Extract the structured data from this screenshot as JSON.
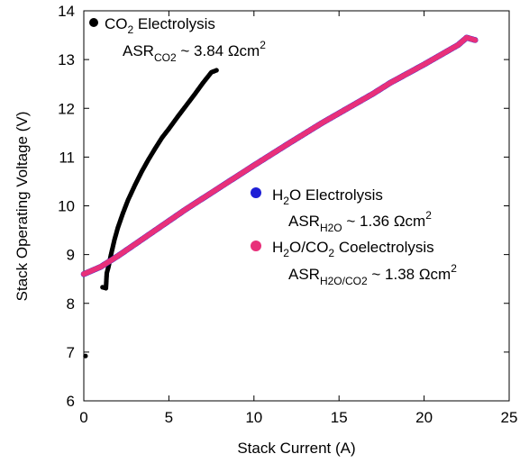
{
  "chart_data": {
    "type": "scatter",
    "xlabel": "Stack Current (A)",
    "ylabel": "Stack Operating Voltage (V)",
    "xlim": [
      0,
      25
    ],
    "ylim": [
      6,
      14
    ],
    "x_ticks": [
      "0",
      "5",
      "10",
      "15",
      "20",
      "25"
    ],
    "y_ticks": [
      "6",
      "7",
      "8",
      "9",
      "10",
      "11",
      "12",
      "13",
      "14"
    ],
    "grid": false,
    "legend_position": "inside-left",
    "series": [
      {
        "name": "CO2 Electrolysis",
        "color": "#000000",
        "asr_label": "~ 3.84 Ωcm",
        "points": [
          [
            0.1,
            6.92
          ],
          [
            1.1,
            8.33
          ],
          [
            1.3,
            8.31
          ],
          [
            1.35,
            8.62
          ],
          [
            1.45,
            8.75
          ],
          [
            1.6,
            9.0
          ],
          [
            1.8,
            9.3
          ],
          [
            2.0,
            9.55
          ],
          [
            2.3,
            9.85
          ],
          [
            2.6,
            10.12
          ],
          [
            3.0,
            10.42
          ],
          [
            3.4,
            10.7
          ],
          [
            3.8,
            10.95
          ],
          [
            4.2,
            11.18
          ],
          [
            4.6,
            11.4
          ],
          [
            5.0,
            11.58
          ],
          [
            5.5,
            11.82
          ],
          [
            6.0,
            12.05
          ],
          [
            6.5,
            12.28
          ],
          [
            7.0,
            12.52
          ],
          [
            7.5,
            12.74
          ],
          [
            7.8,
            12.78
          ]
        ]
      },
      {
        "name": "H2O Electrolysis",
        "color": "#1f1fd6",
        "asr_label": "~ 1.36 Ωcm",
        "points": [
          [
            0.0,
            8.6
          ],
          [
            1.0,
            8.75
          ],
          [
            2.0,
            8.97
          ],
          [
            4.0,
            9.45
          ],
          [
            6.0,
            9.93
          ],
          [
            8.0,
            10.38
          ],
          [
            10.0,
            10.83
          ],
          [
            12.0,
            11.27
          ],
          [
            14.0,
            11.7
          ],
          [
            16.0,
            12.1
          ],
          [
            17.0,
            12.3
          ],
          [
            18.0,
            12.52
          ],
          [
            20.0,
            12.9
          ],
          [
            22.0,
            13.3
          ],
          [
            22.5,
            13.45
          ],
          [
            23.0,
            13.4
          ]
        ]
      },
      {
        "name": "H2O/CO2 Coelectrolysis",
        "color": "#e8307a",
        "asr_label": "~ 1.38 Ωcm",
        "points": [
          [
            0.0,
            8.6
          ],
          [
            1.0,
            8.75
          ],
          [
            2.0,
            8.97
          ],
          [
            4.0,
            9.45
          ],
          [
            6.0,
            9.93
          ],
          [
            8.0,
            10.38
          ],
          [
            10.0,
            10.83
          ],
          [
            12.0,
            11.27
          ],
          [
            14.0,
            11.7
          ],
          [
            16.0,
            12.1
          ],
          [
            17.0,
            12.3
          ],
          [
            18.0,
            12.52
          ],
          [
            20.0,
            12.9
          ],
          [
            22.0,
            13.3
          ],
          [
            22.5,
            13.45
          ],
          [
            23.0,
            13.4
          ]
        ]
      }
    ],
    "legend": {
      "co2": {
        "pre": "CO",
        "sub": "2",
        "post": " Electrolysis",
        "asr": "ASR",
        "asr_sub": "CO2",
        "asr_val": " ~ 3.84 Ωcm",
        "sup": "2"
      },
      "h2o": {
        "pre": "H",
        "sub": "2",
        "post": "O Electrolysis",
        "asr": "ASR",
        "asr_sub": "H2O",
        "asr_val": " ~ 1.36 Ωcm",
        "sup": "2"
      },
      "coel": {
        "pre": "H",
        "sub": "2",
        "mid": "O/CO",
        "sub2": "2",
        "post": " Coelectrolysis",
        "asr": "ASR",
        "asr_sub": "H2O/CO2",
        "asr_val": " ~ 1.38 Ωcm",
        "sup": "2"
      }
    }
  }
}
